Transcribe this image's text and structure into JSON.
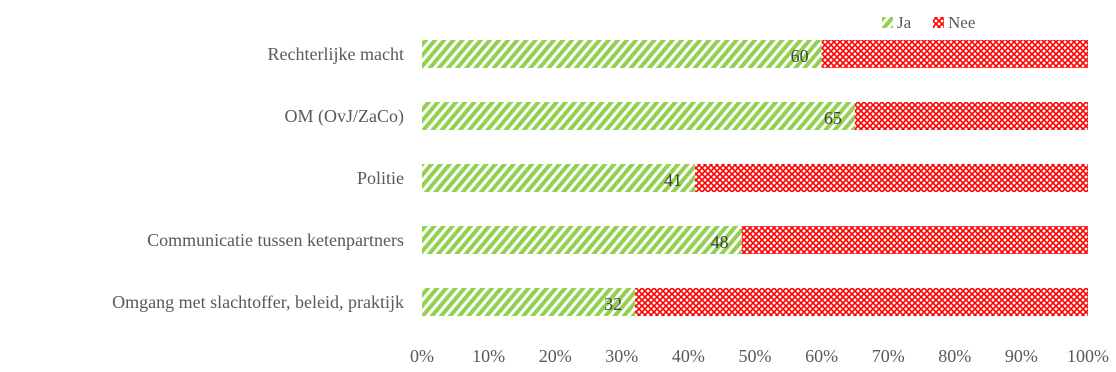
{
  "chart_data": {
    "type": "bar",
    "orientation": "horizontal",
    "stacked": "percent",
    "categories": [
      "Rechterlijke macht",
      "OM (OvJ/ZaCo)",
      "Politie",
      "Communicatie tussen ketenpartners",
      "Omgang met slachtoffer, beleid, praktijk"
    ],
    "series": [
      {
        "name": "Ja",
        "values": [
          60,
          65,
          41,
          48,
          32
        ],
        "color": "#92d050",
        "pattern": "diagonal-stripes"
      },
      {
        "name": "Nee",
        "values": [
          40,
          35,
          59,
          52,
          68
        ],
        "color": "#ff0000",
        "pattern": "cross-hatch"
      }
    ],
    "data_labels": [
      60,
      65,
      41,
      48,
      32
    ],
    "x_ticks": [
      "0%",
      "10%",
      "20%",
      "30%",
      "40%",
      "50%",
      "60%",
      "70%",
      "80%",
      "90%",
      "100%"
    ],
    "xlim": [
      0,
      100
    ],
    "legend_position": "top-right",
    "grid": false,
    "title": "",
    "xlabel": "",
    "ylabel": ""
  }
}
